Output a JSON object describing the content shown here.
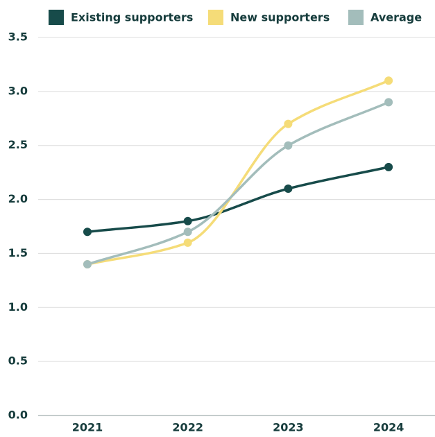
{
  "chart_data": {
    "type": "line",
    "categories": [
      "2021",
      "2022",
      "2023",
      "2024"
    ],
    "series": [
      {
        "name": "Existing supporters",
        "color": "#174b4a",
        "values": [
          1.7,
          1.8,
          2.1,
          2.3
        ]
      },
      {
        "name": "New supporters",
        "color": "#f5dc78",
        "values": [
          1.4,
          1.6,
          2.7,
          3.1
        ]
      },
      {
        "name": "Average",
        "color": "#a3bdbb",
        "values": [
          1.4,
          1.7,
          2.5,
          2.9
        ]
      }
    ],
    "ylim": [
      0,
      3.5
    ],
    "yticks": [
      {
        "value": 0,
        "label": "0.0"
      },
      0.5,
      {
        "value": 1,
        "label": "1.0"
      },
      1.5,
      {
        "value": 2,
        "label": "2.0"
      },
      2.5,
      {
        "value": 3,
        "label": "3.0"
      },
      3.5
    ],
    "grid": true,
    "legend": "top",
    "smooth": true
  }
}
